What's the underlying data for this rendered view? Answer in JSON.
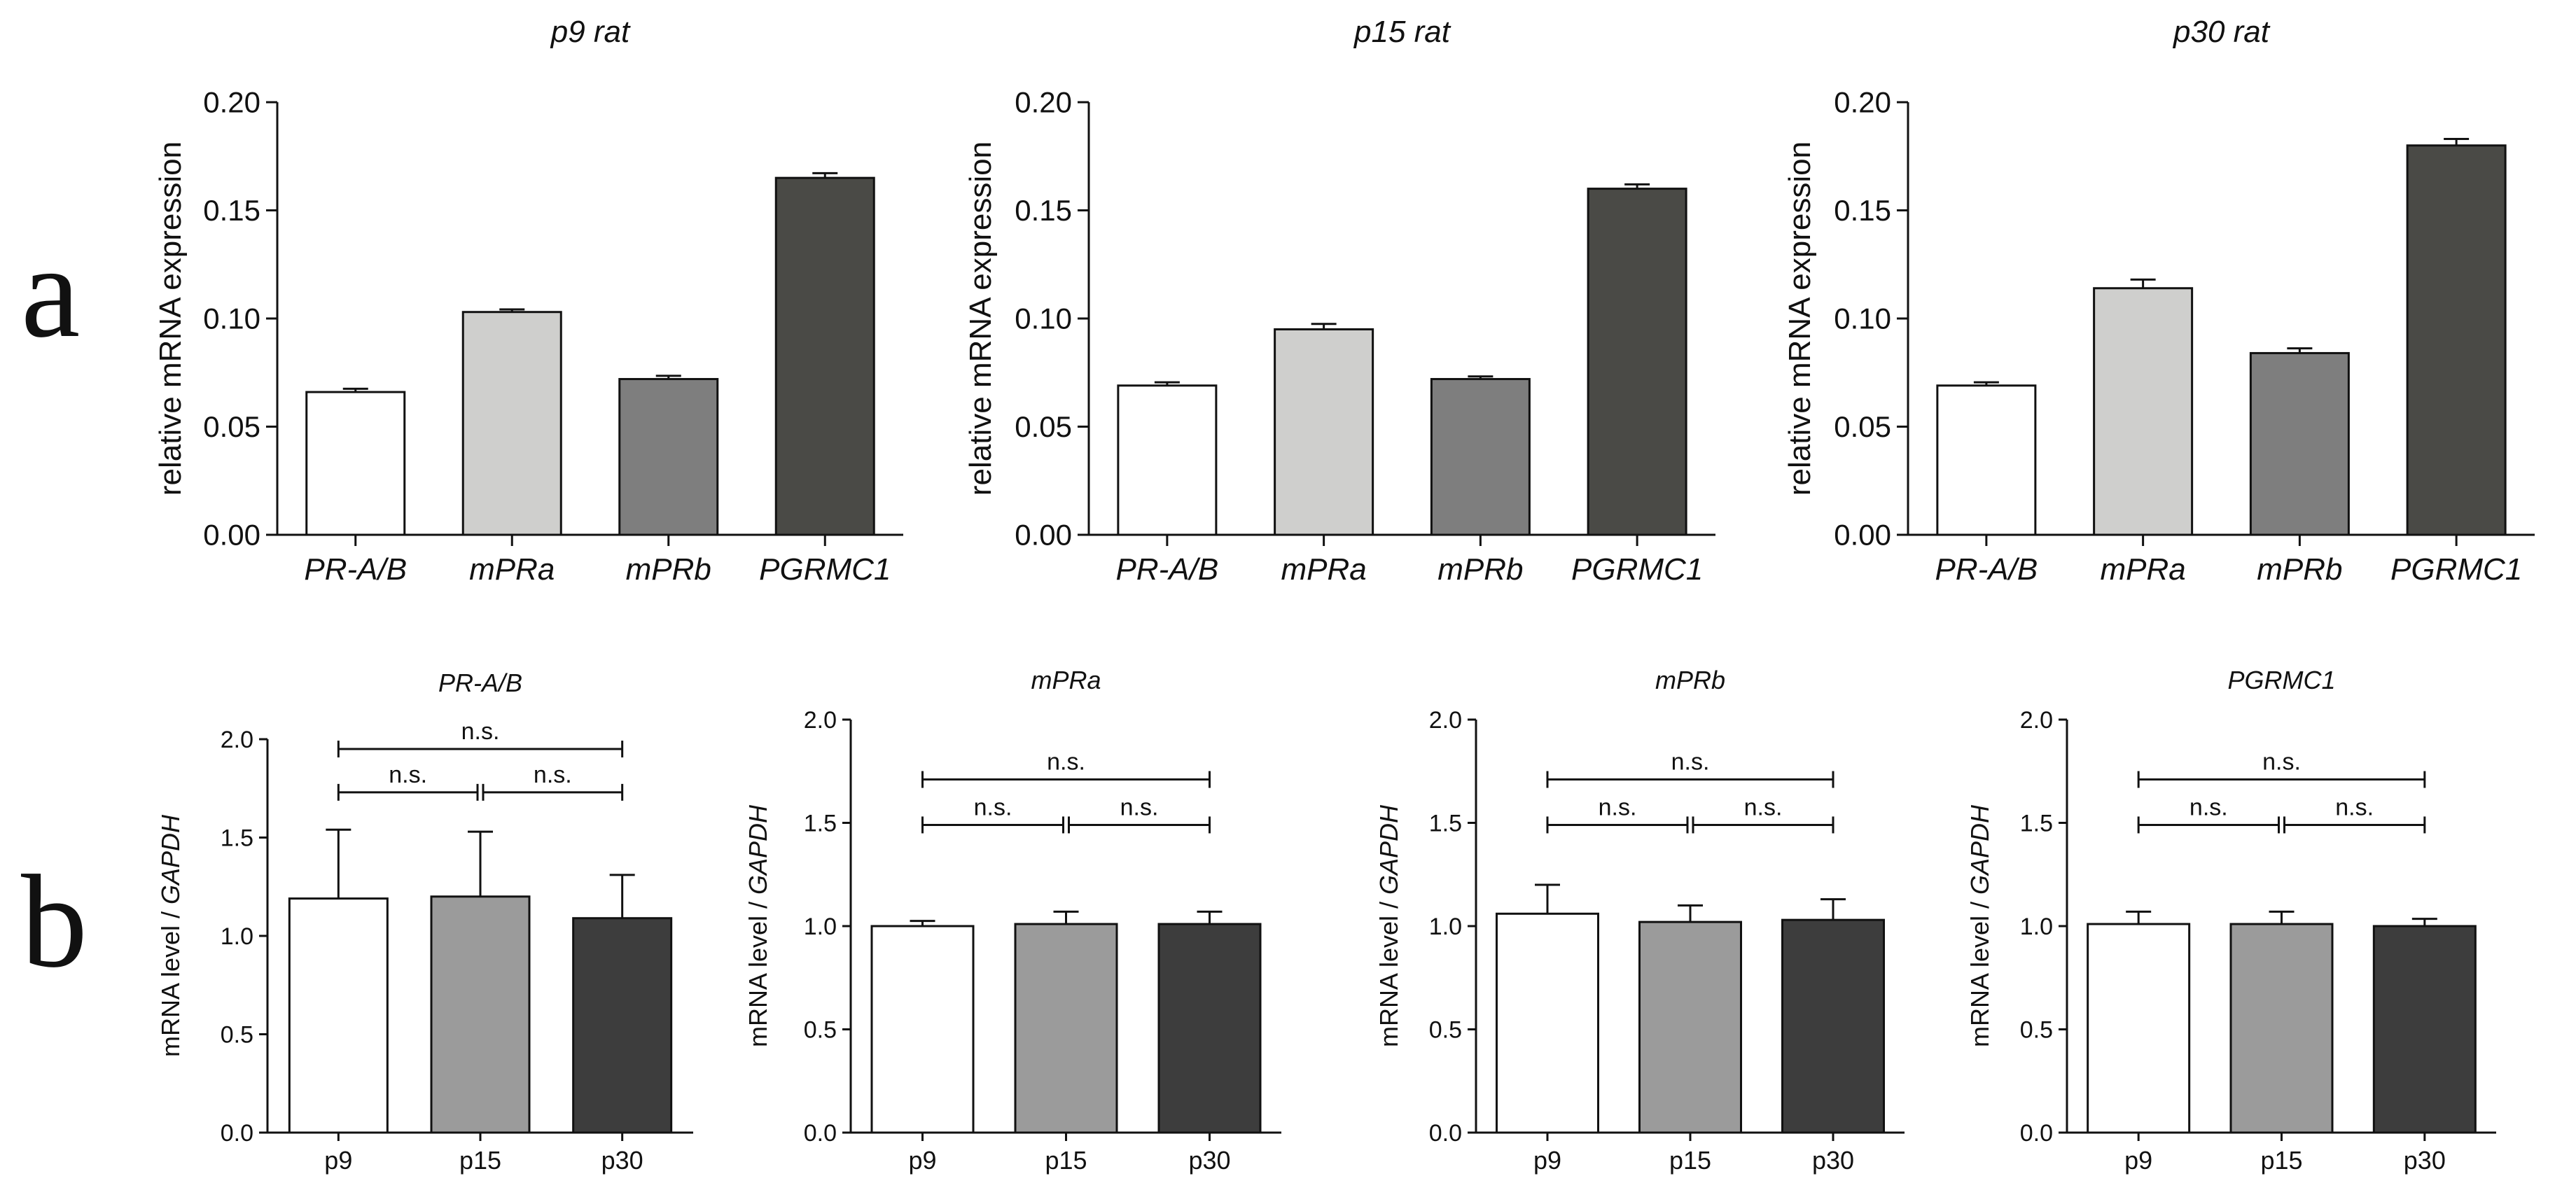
{
  "panel_labels": [
    "a",
    "b"
  ],
  "chart_data": [
    {
      "id": "a1",
      "type": "bar",
      "title": "p9 rat",
      "ylabel": "relative mRNA expression",
      "xlabel": "",
      "ylim": [
        0,
        0.2
      ],
      "yticks": [
        "0.00",
        "0.05",
        "0.10",
        "0.15",
        "0.20"
      ],
      "grid": false,
      "categories": [
        "PR-A/B",
        "mPRa",
        "mPRb",
        "PGRMC1"
      ],
      "values": [
        0.066,
        0.103,
        0.072,
        0.165
      ],
      "errors": [
        0.0015,
        0.0012,
        0.0015,
        0.0022
      ],
      "colors": [
        "#ffffff",
        "#cfcfcd",
        "#7e7e7e",
        "#4a4a46"
      ]
    },
    {
      "id": "a2",
      "type": "bar",
      "title": "p15 rat",
      "ylabel": "relative mRNA expression",
      "xlabel": "",
      "ylim": [
        0,
        0.2
      ],
      "yticks": [
        "0.00",
        "0.05",
        "0.10",
        "0.15",
        "0.20"
      ],
      "grid": false,
      "categories": [
        "PR-A/B",
        "mPRa",
        "mPRb",
        "PGRMC1"
      ],
      "values": [
        0.069,
        0.095,
        0.072,
        0.16
      ],
      "errors": [
        0.0015,
        0.0025,
        0.0012,
        0.002
      ],
      "colors": [
        "#ffffff",
        "#cfcfcd",
        "#7e7e7e",
        "#4a4a46"
      ]
    },
    {
      "id": "a3",
      "type": "bar",
      "title": "p30 rat",
      "ylabel": "relative mRNA expression",
      "xlabel": "",
      "ylim": [
        0,
        0.2
      ],
      "yticks": [
        "0.00",
        "0.05",
        "0.10",
        "0.15",
        "0.20"
      ],
      "grid": false,
      "categories": [
        "PR-A/B",
        "mPRa",
        "mPRb",
        "PGRMC1"
      ],
      "values": [
        0.069,
        0.114,
        0.084,
        0.18
      ],
      "errors": [
        0.0015,
        0.004,
        0.0022,
        0.003
      ],
      "colors": [
        "#ffffff",
        "#cfcfcd",
        "#7e7e7e",
        "#4a4a46"
      ]
    },
    {
      "id": "b1",
      "type": "bar",
      "title": "PR-A/B",
      "ylabel": "mRNA level / GAPDH",
      "xlabel": "",
      "ylim": [
        0,
        2.0
      ],
      "yticks": [
        "0.0",
        "0.5",
        "1.0",
        "1.5",
        "2.0"
      ],
      "grid": false,
      "categories": [
        "p9",
        "p15",
        "p30"
      ],
      "values": [
        1.19,
        1.2,
        1.09
      ],
      "errors": [
        0.35,
        0.33,
        0.22
      ],
      "colors": [
        "#ffffff",
        "#9b9b9b",
        "#3d3d3d"
      ],
      "significance": [
        {
          "from": 0,
          "to": 1,
          "label": "n.s.",
          "level": 1.73
        },
        {
          "from": 1,
          "to": 2,
          "label": "n.s.",
          "level": 1.73
        },
        {
          "from": 0,
          "to": 2,
          "label": "n.s.",
          "level": 1.95
        }
      ]
    },
    {
      "id": "b2",
      "type": "bar",
      "title": "mPRa",
      "ylabel": "mRNA level / GAPDH",
      "xlabel": "",
      "ylim": [
        0,
        2.0
      ],
      "yticks": [
        "0.0",
        "0.5",
        "1.0",
        "1.5",
        "2.0"
      ],
      "grid": false,
      "categories": [
        "p9",
        "p15",
        "p30"
      ],
      "values": [
        1.0,
        1.01,
        1.01
      ],
      "errors": [
        0.025,
        0.06,
        0.06
      ],
      "colors": [
        "#ffffff",
        "#9b9b9b",
        "#3d3d3d"
      ],
      "significance": [
        {
          "from": 0,
          "to": 1,
          "label": "n.s.",
          "level": 1.49
        },
        {
          "from": 1,
          "to": 2,
          "label": "n.s.",
          "level": 1.49
        },
        {
          "from": 0,
          "to": 2,
          "label": "n.s.",
          "level": 1.71
        }
      ]
    },
    {
      "id": "b3",
      "type": "bar",
      "title": "mPRb",
      "ylabel": "mRNA level / GAPDH",
      "xlabel": "",
      "ylim": [
        0,
        2.0
      ],
      "yticks": [
        "0.0",
        "0.5",
        "1.0",
        "1.5",
        "2.0"
      ],
      "grid": false,
      "categories": [
        "p9",
        "p15",
        "p30"
      ],
      "values": [
        1.06,
        1.02,
        1.03
      ],
      "errors": [
        0.14,
        0.08,
        0.1
      ],
      "colors": [
        "#ffffff",
        "#9b9b9b",
        "#3d3d3d"
      ],
      "significance": [
        {
          "from": 0,
          "to": 1,
          "label": "n.s.",
          "level": 1.49
        },
        {
          "from": 1,
          "to": 2,
          "label": "n.s.",
          "level": 1.49
        },
        {
          "from": 0,
          "to": 2,
          "label": "n.s.",
          "level": 1.71
        }
      ]
    },
    {
      "id": "b4",
      "type": "bar",
      "title": "PGRMC1",
      "ylabel": "mRNA level / GAPDH",
      "xlabel": "",
      "ylim": [
        0,
        2.0
      ],
      "yticks": [
        "0.0",
        "0.5",
        "1.0",
        "1.5",
        "2.0"
      ],
      "grid": false,
      "categories": [
        "p9",
        "p15",
        "p30"
      ],
      "values": [
        1.01,
        1.01,
        1.0
      ],
      "errors": [
        0.06,
        0.06,
        0.035
      ],
      "colors": [
        "#ffffff",
        "#9b9b9b",
        "#3d3d3d"
      ],
      "significance": [
        {
          "from": 0,
          "to": 1,
          "label": "n.s.",
          "level": 1.49
        },
        {
          "from": 1,
          "to": 2,
          "label": "n.s.",
          "level": 1.49
        },
        {
          "from": 0,
          "to": 2,
          "label": "n.s.",
          "level": 1.71
        }
      ]
    }
  ]
}
